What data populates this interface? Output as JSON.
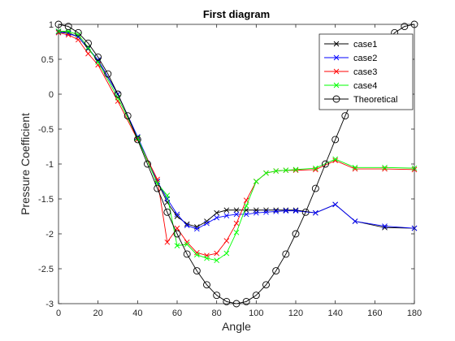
{
  "chart_data": {
    "type": "line",
    "title": "First diagram",
    "xlabel": "Angle",
    "ylabel": "Pressure Coefficient",
    "xlim": [
      0,
      180
    ],
    "ylim": [
      -3,
      1
    ],
    "xticks": [
      "0",
      "20",
      "40",
      "60",
      "80",
      "100",
      "120",
      "140",
      "160",
      "180"
    ],
    "yticks": [
      "1",
      "0.5",
      "0",
      "-0.5",
      "-1",
      "-1.5",
      "-2",
      "-2.5",
      "-3"
    ],
    "grid": false,
    "legend_position": "top-right",
    "series": [
      {
        "name": "case1",
        "color": "#000000",
        "marker": "x",
        "x": [
          0,
          5,
          10,
          15,
          20,
          30,
          40,
          50,
          55,
          60,
          65,
          70,
          75,
          80,
          85,
          90,
          95,
          100,
          105,
          110,
          115,
          120,
          130,
          140,
          150,
          165,
          180
        ],
        "y": [
          0.9,
          0.88,
          0.82,
          0.65,
          0.48,
          0.0,
          -0.62,
          -1.25,
          -1.55,
          -1.75,
          -1.86,
          -1.9,
          -1.82,
          -1.7,
          -1.66,
          -1.66,
          -1.66,
          -1.66,
          -1.66,
          -1.66,
          -1.66,
          -1.66,
          -1.7,
          -1.58,
          -1.82,
          -1.91,
          -1.92
        ]
      },
      {
        "name": "case2",
        "color": "#0000ff",
        "marker": "x",
        "x": [
          0,
          5,
          10,
          15,
          20,
          30,
          40,
          50,
          55,
          60,
          65,
          70,
          75,
          80,
          85,
          90,
          95,
          100,
          105,
          110,
          115,
          120,
          130,
          140,
          150,
          165,
          180
        ],
        "y": [
          0.89,
          0.87,
          0.82,
          0.66,
          0.49,
          0.0,
          -0.61,
          -1.25,
          -1.5,
          -1.72,
          -1.88,
          -1.93,
          -1.85,
          -1.77,
          -1.74,
          -1.72,
          -1.72,
          -1.7,
          -1.69,
          -1.68,
          -1.67,
          -1.67,
          -1.7,
          -1.58,
          -1.82,
          -1.89,
          -1.92
        ]
      },
      {
        "name": "case3",
        "color": "#ff0000",
        "marker": "x",
        "x": [
          0,
          5,
          10,
          15,
          20,
          30,
          40,
          50,
          55,
          60,
          65,
          70,
          75,
          80,
          85,
          90,
          95,
          100,
          105,
          110,
          115,
          120,
          130,
          140,
          150,
          165,
          180
        ],
        "y": [
          0.88,
          0.85,
          0.78,
          0.58,
          0.42,
          -0.1,
          -0.65,
          -1.22,
          -2.12,
          -1.92,
          -2.12,
          -2.27,
          -2.31,
          -2.28,
          -2.1,
          -1.85,
          -1.52,
          -1.25,
          -1.13,
          -1.1,
          -1.09,
          -1.09,
          -1.08,
          -0.95,
          -1.07,
          -1.07,
          -1.08
        ]
      },
      {
        "name": "case4",
        "color": "#00ff00",
        "marker": "x",
        "x": [
          0,
          5,
          10,
          15,
          20,
          30,
          40,
          50,
          55,
          60,
          65,
          70,
          75,
          80,
          85,
          90,
          95,
          100,
          105,
          110,
          115,
          120,
          130,
          140,
          150,
          165,
          180
        ],
        "y": [
          0.9,
          0.9,
          0.85,
          0.67,
          0.46,
          -0.05,
          -0.63,
          -1.28,
          -1.45,
          -2.17,
          -2.15,
          -2.3,
          -2.35,
          -2.38,
          -2.28,
          -1.98,
          -1.6,
          -1.25,
          -1.13,
          -1.1,
          -1.09,
          -1.08,
          -1.06,
          -0.93,
          -1.05,
          -1.05,
          -1.06
        ]
      },
      {
        "name": "Theoretical",
        "color": "#000000",
        "marker": "o",
        "x": [
          0,
          5,
          10,
          15,
          20,
          25,
          30,
          35,
          40,
          45,
          50,
          55,
          60,
          65,
          70,
          75,
          80,
          85,
          90,
          95,
          100,
          105,
          110,
          115,
          120,
          125,
          130,
          135,
          140,
          145,
          150,
          155,
          160,
          165,
          170,
          175,
          180
        ],
        "y": [
          1.0,
          0.97,
          0.88,
          0.73,
          0.53,
          0.29,
          0.0,
          -0.31,
          -0.65,
          -1.0,
          -1.35,
          -1.69,
          -2.0,
          -2.29,
          -2.53,
          -2.73,
          -2.88,
          -2.97,
          -3.0,
          -2.97,
          -2.88,
          -2.73,
          -2.53,
          -2.29,
          -2.0,
          -1.69,
          -1.35,
          -1.0,
          -0.65,
          -0.31,
          0.0,
          0.29,
          0.53,
          0.73,
          0.88,
          0.97,
          1.0
        ]
      }
    ]
  }
}
